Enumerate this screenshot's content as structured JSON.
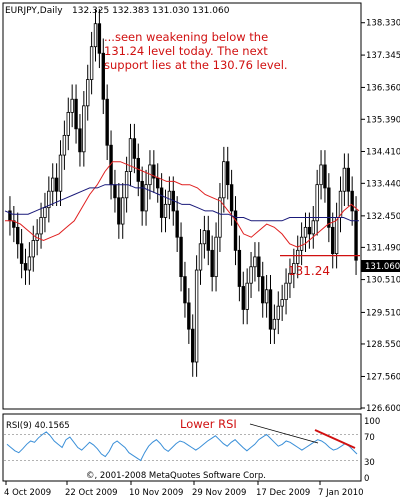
{
  "header": {
    "symbol_label": "EURJPY,Daily",
    "ohlc_label": "132.325 132.383 131.030 131.060"
  },
  "annotation": {
    "lines": [
      "...seen weakening below the",
      "131.24 level today. The next",
      "support lies at the 130.76 level."
    ],
    "level_label": "131.24",
    "current_price": "131.060",
    "lower_rsi_label": "Lower RSI"
  },
  "rsi": {
    "label": "RSI(9) 40.1565",
    "ticks": [
      "100",
      "70",
      "30",
      "0"
    ]
  },
  "copyright": "©, 2001-2008 MetaQuotes Software Corp.",
  "colors": {
    "candle": "#000000",
    "ma_fast": "#e02020",
    "ma_slow": "#1a1a7a",
    "rsi_line": "#3a8fd8",
    "annotation": "#d01010",
    "level": "#d01010"
  },
  "chart_data": {
    "type": "candlestick",
    "title": "EURJPY,Daily",
    "ylim": [
      126.6,
      138.9
    ],
    "y_ticks": [
      "138.330",
      "137.345",
      "136.360",
      "135.390",
      "134.410",
      "133.440",
      "132.450",
      "131.490",
      "130.510",
      "129.510",
      "128.550",
      "127.560",
      "126.600"
    ],
    "x_ticks": [
      "4 Oct 2009",
      "22 Oct 2009",
      "10 Nov 2009",
      "29 Nov 2009",
      "17 Dec 2009",
      "7 Jan 2010"
    ],
    "candles_close": [
      132.3,
      132.1,
      131.6,
      131.0,
      130.8,
      131.2,
      131.7,
      131.9,
      132.4,
      132.7,
      133.2,
      133.6,
      133.2,
      134.3,
      134.9,
      135.6,
      136.0,
      135.1,
      134.4,
      135.8,
      136.6,
      137.6,
      138.3,
      137.4,
      136.0,
      134.6,
      133.4,
      133.0,
      132.2,
      133.0,
      133.8,
      134.8,
      134.2,
      133.5,
      132.6,
      133.4,
      134.0,
      133.6,
      133.3,
      132.4,
      132.8,
      133.2,
      132.6,
      131.8,
      130.6,
      129.8,
      129.0,
      128.0,
      130.8,
      131.6,
      132.0,
      131.4,
      130.6,
      131.8,
      133.0,
      134.1,
      133.4,
      132.6,
      131.4,
      130.3,
      129.6,
      130.4,
      130.9,
      131.2,
      130.6,
      129.8,
      130.2,
      129.0,
      129.3,
      129.7,
      129.9,
      130.4,
      130.7,
      131.0,
      131.4,
      131.8,
      132.1,
      131.9,
      132.3,
      133.4,
      134.0,
      133.3,
      132.1,
      131.3,
      132.4,
      133.2,
      133.9,
      133.2,
      132.6,
      131.1
    ],
    "series": [
      {
        "values": [
          132.3,
          132.3,
          132.2,
          132.0,
          131.8,
          131.7,
          131.8,
          131.9,
          132.1,
          132.3,
          132.7,
          133.1,
          133.4,
          133.8,
          134.1,
          134.1,
          134.0,
          133.9,
          133.8,
          133.7,
          133.6,
          133.5,
          133.5,
          133.4,
          133.4,
          133.3,
          133.1,
          133.0,
          132.9,
          132.6,
          132.3,
          131.9,
          131.8,
          132.0,
          132.2,
          132.1,
          131.9,
          131.6,
          131.5,
          131.6,
          131.8,
          132.0,
          132.2,
          132.3,
          132.6,
          132.8,
          132.6
        ]
      },
      {
        "values": [
          132.6,
          132.5,
          132.5,
          132.5,
          132.6,
          132.7,
          132.8,
          132.9,
          133.0,
          133.1,
          133.2,
          133.3,
          133.3,
          133.4,
          133.4,
          133.4,
          133.4,
          133.3,
          133.3,
          133.2,
          133.1,
          133.0,
          132.9,
          132.8,
          132.8,
          132.7,
          132.6,
          132.6,
          132.5,
          132.5,
          132.4,
          132.4,
          132.3,
          132.3,
          132.3,
          132.3,
          132.3,
          132.4,
          132.4,
          132.4,
          132.4,
          132.4,
          132.4,
          132.4,
          132.4,
          132.3,
          132.3
        ]
      }
    ],
    "level": 131.24,
    "rsi_ylim": [
      0,
      100
    ],
    "rsi_values": [
      55,
      50,
      45,
      42,
      48,
      55,
      60,
      58,
      65,
      70,
      74,
      68,
      60,
      55,
      50,
      62,
      66,
      58,
      50,
      46,
      52,
      58,
      54,
      48,
      40,
      36,
      44,
      56,
      60,
      55,
      50,
      42,
      38,
      34,
      30,
      42,
      52,
      58,
      62,
      56,
      48,
      44,
      50,
      56,
      60,
      58,
      54,
      50,
      46,
      50,
      55,
      60,
      64,
      68,
      62,
      56,
      52,
      58,
      62,
      56,
      50,
      45,
      50,
      55,
      62,
      66,
      70,
      64,
      58,
      52,
      55,
      60,
      58,
      54,
      50,
      46,
      50,
      54,
      58,
      62,
      60,
      56,
      50,
      46,
      48,
      52,
      56,
      52,
      46,
      40
    ]
  }
}
